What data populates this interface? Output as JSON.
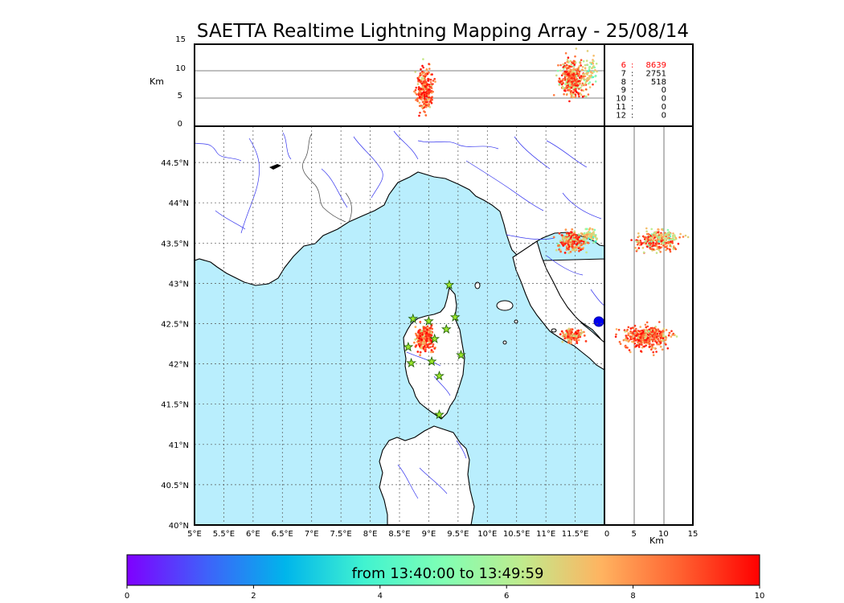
{
  "title": "SAETTA Realtime Lightning Mapping Array - 25/08/14",
  "colors": {
    "sea": "#b9eefd",
    "land": "#ffffff",
    "river": "#3333ee",
    "coast": "#000000",
    "border": "#555555",
    "highlight": "#ff0000",
    "station_fill": "#9be62c",
    "station_stroke": "#1a5a00"
  },
  "chart_data": {
    "type": "scatter",
    "map": {
      "lon_range": [
        5,
        12
      ],
      "lat_range": [
        40,
        44.95
      ],
      "lon_ticks": [
        "5°E",
        "5.5°E",
        "6°E",
        "6.5°E",
        "7°E",
        "7.5°E",
        "8°E",
        "8.5°E",
        "9°E",
        "9.5°E",
        "10°E",
        "10.5°E",
        "11°E",
        "11.5°E"
      ],
      "lat_ticks": [
        "40°N",
        "40.5°N",
        "41°N",
        "41.5°N",
        "42°N",
        "42.5°N",
        "43°N",
        "43.5°N",
        "44°N",
        "44.5°N"
      ],
      "grid": "dotted"
    },
    "altitude_lon_panel": {
      "ylabel": "Km",
      "ylim": [
        0,
        15
      ],
      "y_ticks": [
        "0",
        "5",
        "10",
        "15"
      ]
    },
    "altitude_lat_panel": {
      "xlabel": "Km",
      "xlim": [
        0,
        15
      ],
      "x_ticks": [
        "0",
        "5",
        "10",
        "15"
      ]
    },
    "station_icon": "star-icon",
    "stations": [
      {
        "lon": 9.35,
        "lat": 42.98
      },
      {
        "lon": 8.73,
        "lat": 42.56
      },
      {
        "lon": 9.0,
        "lat": 42.53
      },
      {
        "lon": 9.45,
        "lat": 42.58
      },
      {
        "lon": 9.3,
        "lat": 42.43
      },
      {
        "lon": 9.1,
        "lat": 42.31
      },
      {
        "lon": 8.65,
        "lat": 42.21
      },
      {
        "lon": 9.55,
        "lat": 42.11
      },
      {
        "lon": 8.7,
        "lat": 42.01
      },
      {
        "lon": 9.05,
        "lat": 42.03
      },
      {
        "lon": 9.18,
        "lat": 41.85
      },
      {
        "lon": 9.18,
        "lat": 41.37
      }
    ],
    "clusters": [
      {
        "lon": 8.93,
        "lat": 42.32,
        "sx": 0.07,
        "sy": 0.08,
        "n": 260,
        "alt": [
          2,
          11
        ],
        "time": [
          6,
          10
        ]
      },
      {
        "lon": 11.45,
        "lat": 43.52,
        "sx": 0.12,
        "sy": 0.06,
        "n": 240,
        "alt": [
          5,
          13
        ],
        "time": [
          4,
          10
        ]
      },
      {
        "lon": 11.45,
        "lat": 42.35,
        "sx": 0.08,
        "sy": 0.04,
        "n": 130,
        "alt": [
          5,
          12
        ],
        "time": [
          5,
          10
        ]
      },
      {
        "lon": 11.75,
        "lat": 43.6,
        "sx": 0.06,
        "sy": 0.04,
        "n": 60,
        "alt": [
          7,
          13
        ],
        "time": [
          3,
          8
        ]
      }
    ],
    "counts_table": [
      {
        "km": "6",
        "count": "8639",
        "highlight": true
      },
      {
        "km": "7",
        "count": "2751",
        "highlight": false
      },
      {
        "km": "8",
        "count": "518",
        "highlight": false
      },
      {
        "km": "9",
        "count": "0",
        "highlight": false
      },
      {
        "km": "10",
        "count": "0",
        "highlight": false
      },
      {
        "km": "11",
        "count": "0",
        "highlight": false
      },
      {
        "km": "12",
        "count": "0",
        "highlight": false
      }
    ],
    "colorbar": {
      "label": "from 13:40:00 to 13:49:59",
      "range": [
        0,
        10
      ],
      "ticks": [
        "0",
        "2",
        "4",
        "6",
        "8",
        "10"
      ]
    }
  }
}
